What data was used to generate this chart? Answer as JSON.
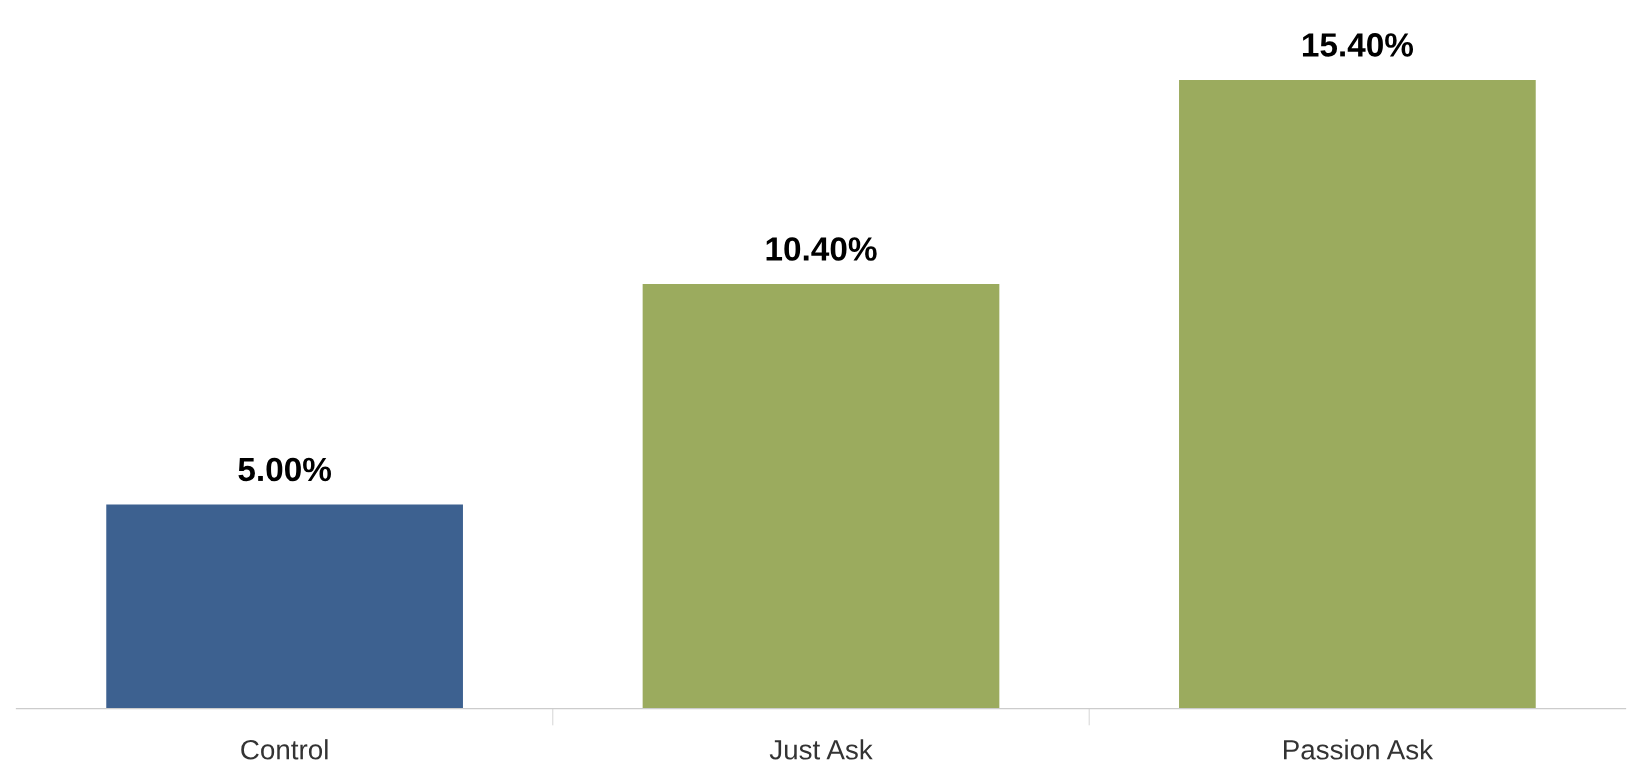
{
  "chart_data": {
    "type": "bar",
    "categories": [
      "Control",
      "Just Ask",
      "Passion Ask"
    ],
    "values": [
      5.0,
      10.4,
      15.4
    ],
    "colors": [
      "#3d6190",
      "#9bab5e",
      "#9bab5e"
    ],
    "value_labels": [
      "5.00%",
      "10.40%",
      "15.40%"
    ],
    "grid": false,
    "legend": false
  }
}
